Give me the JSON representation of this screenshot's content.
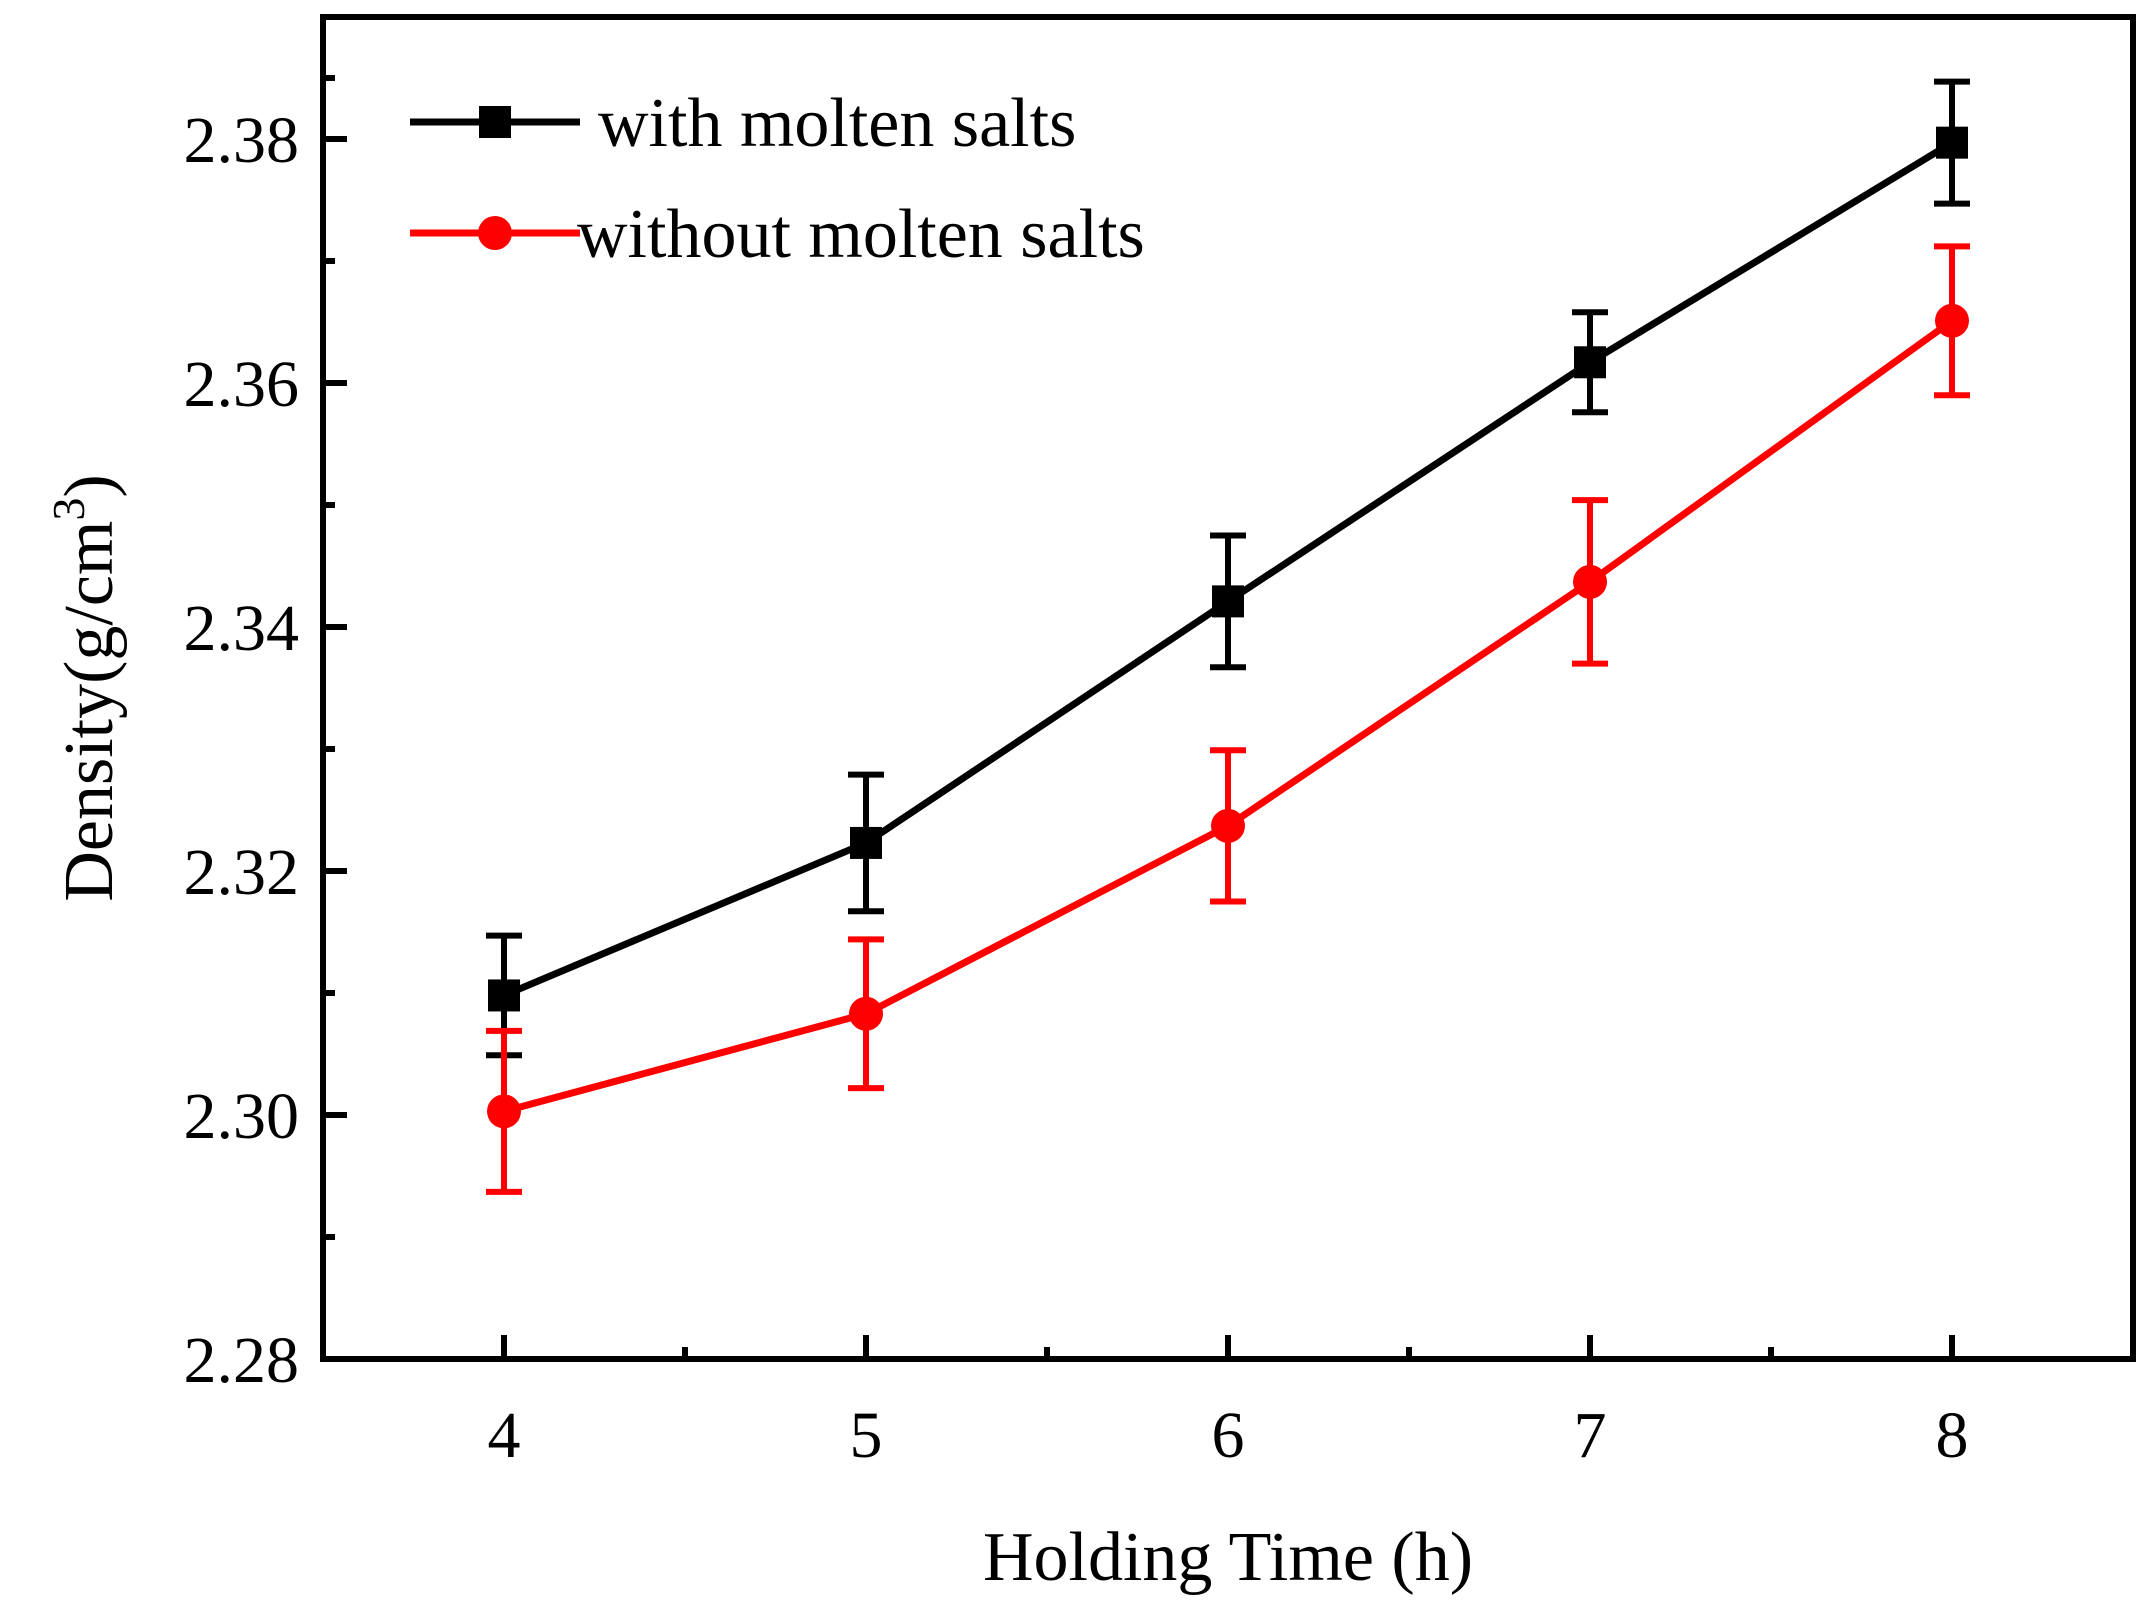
{
  "chart_data": {
    "type": "line",
    "xlabel": "Holding Time (h)",
    "ylabel_main": "Density(g/cm",
    "ylabel_sup": "3",
    "ylabel_close": ")",
    "x": [
      4,
      5,
      6,
      7,
      8
    ],
    "xlim": [
      3.5,
      8.5
    ],
    "ylim": [
      2.28,
      2.39
    ],
    "xticks": [
      "4",
      "5",
      "6",
      "7",
      "8"
    ],
    "yticks": [
      "2.28",
      "2.30",
      "2.32",
      "2.34",
      "2.36",
      "2.38"
    ],
    "ytick_values": [
      2.28,
      2.3,
      2.32,
      2.34,
      2.36,
      2.38
    ],
    "legend_position": "top-left",
    "grid": false,
    "series": [
      {
        "name": "with molten salts",
        "color": "#000000",
        "marker": "square",
        "values": [
          2.3098,
          2.3223,
          2.3421,
          2.3617,
          2.3797
        ],
        "errors": [
          0.0049,
          0.0056,
          0.0054,
          0.0041,
          0.005
        ]
      },
      {
        "name": "without molten salts",
        "color": "#ff0000",
        "marker": "circle",
        "values": [
          2.3003,
          2.3083,
          2.3237,
          2.3437,
          2.3651
        ],
        "errors": [
          0.0066,
          0.0061,
          0.0062,
          0.0067,
          0.0061
        ]
      }
    ]
  }
}
